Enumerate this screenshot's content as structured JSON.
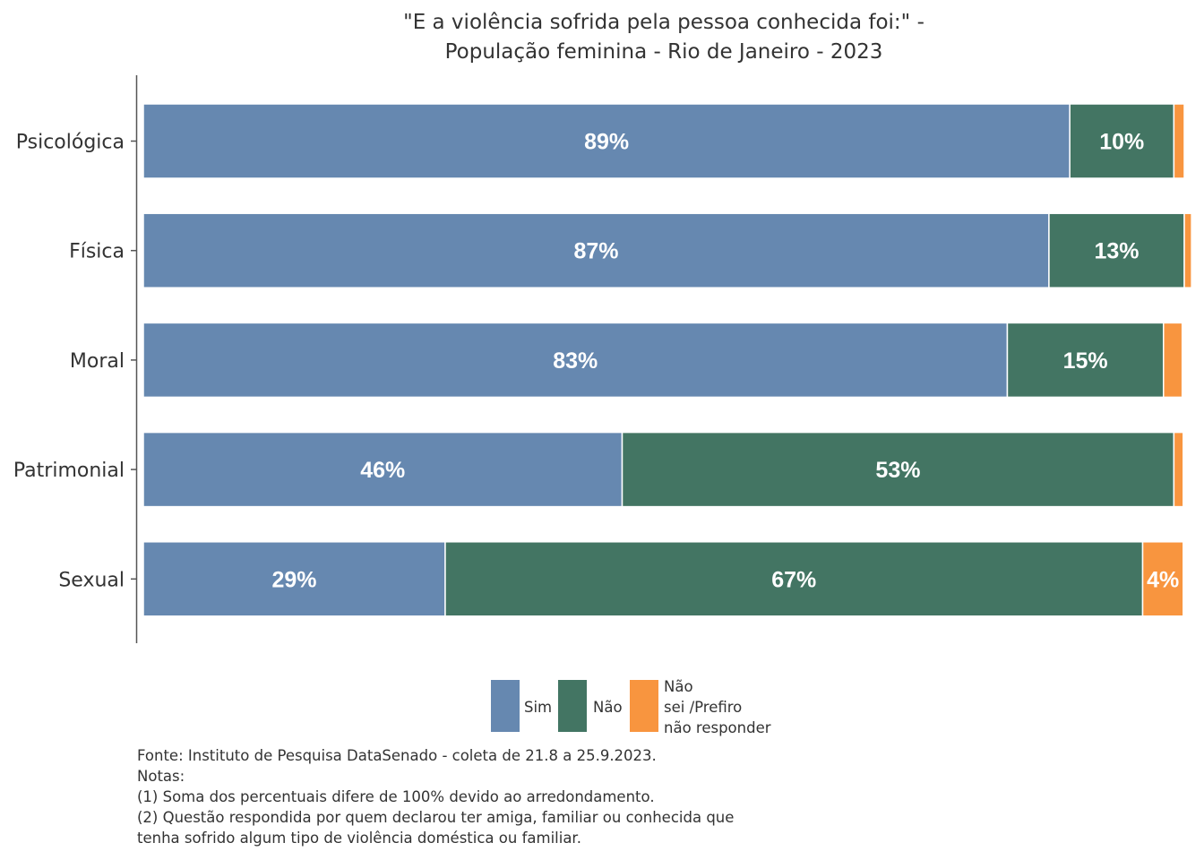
{
  "chart_data": {
    "type": "bar",
    "orientation": "horizontal",
    "stacked": true,
    "title_lines": [
      "\"E a violência sofrida pela pessoa conhecida foi:\" -",
      "População feminina - Rio de Janeiro - 2023"
    ],
    "categories": [
      "Psicológica",
      "Física",
      "Moral",
      "Patrimonial",
      "Sexual"
    ],
    "series": [
      {
        "name": "Sim",
        "color": "#6688b0",
        "values": [
          89,
          87,
          83,
          46,
          29
        ],
        "labels": [
          "89%",
          "87%",
          "83%",
          "46%",
          "29%"
        ]
      },
      {
        "name": "Não",
        "color": "#437563",
        "values": [
          10,
          13,
          15,
          53,
          67
        ],
        "labels": [
          "10%",
          "13%",
          "15%",
          "53%",
          "67%"
        ]
      },
      {
        "name": "Não sei /Prefiro não responder",
        "color": "#f8953f",
        "values": [
          1,
          0.7,
          1.8,
          0.9,
          3.9
        ],
        "labels": [
          "",
          "",
          "",
          "",
          "4%"
        ]
      }
    ],
    "legend": {
      "position": "bottom",
      "items": [
        {
          "color": "#6688b0",
          "label_lines": [
            "Sim"
          ]
        },
        {
          "color": "#437563",
          "label_lines": [
            "Não"
          ]
        },
        {
          "color": "#f8953f",
          "label_lines": [
            "Não",
            "sei /Prefiro",
            "não responder"
          ]
        }
      ]
    },
    "xlim": [
      0,
      100
    ],
    "grid": false,
    "caption_lines": [
      "Fonte: Instituto de Pesquisa DataSenado - coleta de 21.8 a 25.9.2023.",
      "Notas:",
      "(1) Soma dos percentuais difere de 100% devido ao arredondamento.",
      "(2) Questão respondida por quem declarou ter amiga, familiar ou conhecida que",
      "tenha sofrido algum tipo de violência doméstica ou familiar."
    ]
  }
}
